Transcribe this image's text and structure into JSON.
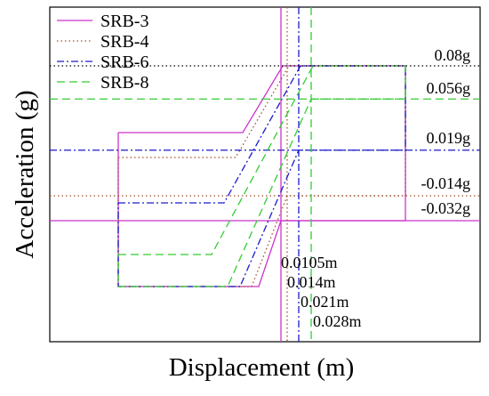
{
  "chart_data": {
    "type": "line",
    "title": "",
    "xlabel": "Displacement (m)",
    "ylabel": "Acceleration (g)",
    "grid": false,
    "legend_position": "top-left",
    "series": [
      {
        "name": "SRB-3",
        "color": "#cc33cc",
        "dash": "solid",
        "displacement_m": 0.0105,
        "upper_g": 0.08,
        "lower_g": -0.032
      },
      {
        "name": "SRB-4",
        "color": "#a0522d",
        "dash": "dotted",
        "displacement_m": 0.014,
        "upper_g": 0.08,
        "lower_g": -0.014
      },
      {
        "name": "SRB-6",
        "color": "#1a1acc",
        "dash": "dashdot",
        "displacement_m": 0.021,
        "upper_g": 0.08,
        "lower_g": 0.019
      },
      {
        "name": "SRB-8",
        "color": "#33cc33",
        "dash": "dashed",
        "displacement_m": 0.028,
        "upper_g": 0.08,
        "lower_g": 0.056
      }
    ],
    "acceleration_annotations": [
      "0.08g",
      "0.056g",
      "0.019g",
      "-0.014g",
      "-0.032g"
    ],
    "displacement_annotations": [
      "0.0105m",
      "0.014m",
      "0.021m",
      "0.028m"
    ]
  }
}
